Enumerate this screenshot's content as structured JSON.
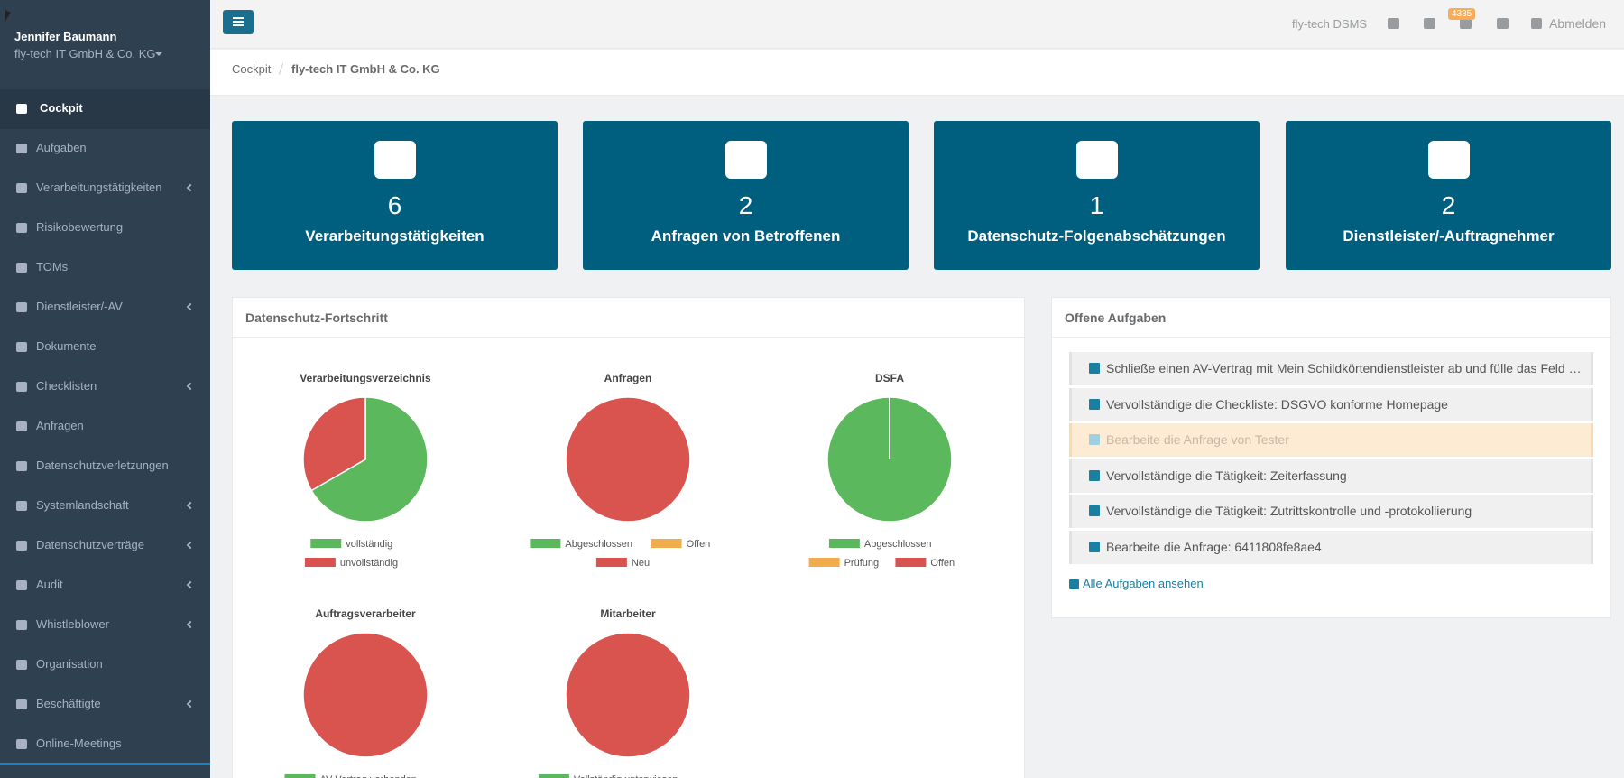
{
  "sidebar": {
    "user": "Jennifer Baumann",
    "company": "fly-tech IT GmbH & Co. KG",
    "nav": [
      {
        "label": "Cockpit",
        "active": true,
        "submenu": false
      },
      {
        "label": "Aufgaben",
        "submenu": false
      },
      {
        "label": "Verarbeitungstätigkeiten",
        "submenu": true
      },
      {
        "label": "Risikobewertung",
        "submenu": false
      },
      {
        "label": "TOMs",
        "submenu": false
      },
      {
        "label": "Dienstleister/-AV",
        "submenu": true
      },
      {
        "label": "Dokumente",
        "submenu": false
      },
      {
        "label": "Checklisten",
        "submenu": true
      },
      {
        "label": "Anfragen",
        "submenu": false
      },
      {
        "label": "Datenschutzverletzungen",
        "submenu": false
      },
      {
        "label": "Systemlandschaft",
        "submenu": true
      },
      {
        "label": "Datenschutzverträge",
        "submenu": true
      },
      {
        "label": "Audit",
        "submenu": true
      },
      {
        "label": "Whistleblower",
        "submenu": true
      },
      {
        "label": "Organisation",
        "submenu": false
      },
      {
        "label": "Beschäftigte",
        "submenu": true
      },
      {
        "label": "Online-Meetings",
        "submenu": false
      }
    ]
  },
  "topbar": {
    "product": "fly-tech DSMS",
    "badge": "4335",
    "logout": "Abmelden"
  },
  "breadcrumb": [
    "Cockpit",
    "fly-tech IT GmbH & Co. KG"
  ],
  "cards": [
    {
      "value": 6,
      "label": "Verarbeitungstätigkeiten"
    },
    {
      "value": 2,
      "label": "Anfragen von Betroffenen"
    },
    {
      "value": 1,
      "label": "Datenschutz-Folgenabschätzungen"
    },
    {
      "value": 2,
      "label": "Dienstleister/-Auftragnehmer"
    }
  ],
  "progress_panel": {
    "title": "Datenschutz-Fortschritt"
  },
  "chart_data": [
    {
      "type": "pie",
      "title": "Verarbeitungsverzeichnis",
      "categories": [
        "vollständig",
        "unvollständig"
      ],
      "values": [
        4,
        2
      ],
      "colors": [
        "#5cb85c",
        "#d9534f"
      ]
    },
    {
      "type": "pie",
      "title": "Anfragen",
      "categories": [
        "Abgeschlossen",
        "Offen",
        "Neu"
      ],
      "values": [
        0,
        0,
        2
      ],
      "colors": [
        "#5cb85c",
        "#f0ad4e",
        "#d9534f"
      ]
    },
    {
      "type": "pie",
      "title": "DSFA",
      "categories": [
        "Abgeschlossen",
        "Prüfung",
        "Offen"
      ],
      "values": [
        1,
        0,
        0
      ],
      "colors": [
        "#5cb85c",
        "#f0ad4e",
        "#d9534f"
      ]
    },
    {
      "type": "pie",
      "title": "Auftragsverarbeiter",
      "categories": [
        "AV-Vertrag vorhanden",
        null
      ],
      "values": [
        0,
        2
      ],
      "colors": [
        "#5cb85c",
        "#d9534f"
      ]
    },
    {
      "type": "pie",
      "title": "Mitarbeiter",
      "categories": [
        "Vollständig unterwiesen",
        null
      ],
      "values": [
        0,
        3
      ],
      "colors": [
        "#5cb85c",
        "#d9534f"
      ]
    }
  ],
  "tasks_panel": {
    "title": "Offene Aufgaben",
    "tasks": [
      {
        "text": "Schließe einen AV-Vertrag mit Mein Schildkörtendienstleister ab und fülle das Feld V...",
        "highlight": false
      },
      {
        "text": "Vervollständige die Checkliste: DSGVO konforme Homepage",
        "highlight": false
      },
      {
        "text": "Bearbeite die Anfrage von Tester",
        "highlight": true
      },
      {
        "text": "Vervollständige die Tätigkeit: Zeiterfassung",
        "highlight": false
      },
      {
        "text": "Vervollständige die Tätigkeit: Zutrittskontrolle und -protokollierung",
        "highlight": false
      },
      {
        "text": "Bearbeite die Anfrage: 6411808fe8ae4",
        "highlight": false
      }
    ],
    "all_link": "Alle Aufgaben ansehen"
  }
}
